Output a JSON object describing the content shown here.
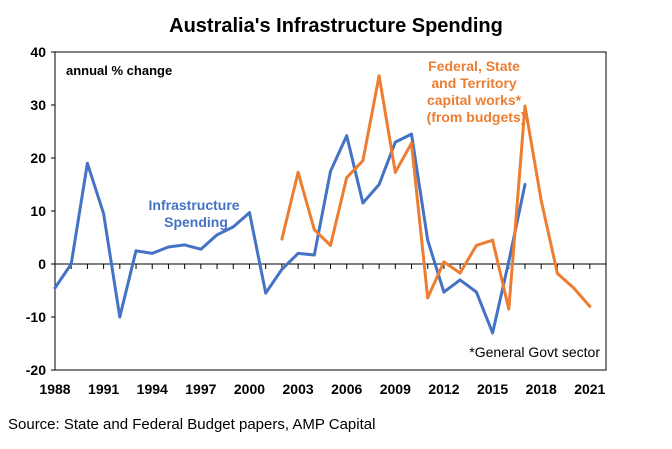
{
  "chart_data": {
    "type": "line",
    "title": "Australia's Infrastructure Spending",
    "ylabel": "annual % change",
    "xlim": [
      1988,
      2022
    ],
    "ylim": [
      -20,
      40
    ],
    "yticks": [
      -20,
      -10,
      0,
      10,
      20,
      30,
      40
    ],
    "xticks": [
      1988,
      1991,
      1994,
      1997,
      2000,
      2003,
      2006,
      2009,
      2012,
      2015,
      2018,
      2021
    ],
    "grid": false,
    "colors": {
      "infrastructure": "#4472c4",
      "capital_works": "#ed7d31",
      "axis": "#000000"
    },
    "series": [
      {
        "name": "Infrastructure Spending",
        "color": "#4472c4",
        "x": [
          1988,
          1989,
          1990,
          1991,
          1992,
          1993,
          1994,
          1995,
          1996,
          1997,
          1998,
          1999,
          2000,
          2001,
          2002,
          2003,
          2004,
          2005,
          2006,
          2007,
          2008,
          2009,
          2010,
          2011,
          2012,
          2013,
          2014,
          2015,
          2016,
          2017
        ],
        "values": [
          -4.5,
          0,
          19,
          9.5,
          -10,
          2.5,
          2,
          3.2,
          3.6,
          2.8,
          5.5,
          7,
          9.7,
          -5.5,
          -1,
          2,
          1.7,
          17.5,
          24.2,
          11.5,
          15,
          23,
          24.5,
          4.5,
          -5.3,
          -3,
          -5.3,
          -13,
          0.5,
          15
        ]
      },
      {
        "name": "Federal, State and Territory capital works* (from budgets)",
        "color": "#ed7d31",
        "x": [
          2002,
          2003,
          2004,
          2005,
          2006,
          2007,
          2008,
          2009,
          2010,
          2011,
          2012,
          2013,
          2014,
          2015,
          2016,
          2017,
          2018,
          2019,
          2020,
          2021
        ],
        "values": [
          4.7,
          17.3,
          6.5,
          3.5,
          16.3,
          19.5,
          35.5,
          17.3,
          22.8,
          -6.4,
          0.4,
          -1.7,
          3.5,
          4.5,
          -8.5,
          29.8,
          12,
          -1.8,
          -4.5,
          -8
        ]
      }
    ],
    "annotations": {
      "blue_label": [
        "Infrastructure",
        "Spending"
      ],
      "orange_label": [
        "Federal, State",
        "and Territory",
        "capital works*",
        "(from budgets)"
      ],
      "footnote": "*General Govt sector"
    },
    "source": "Source: State and Federal Budget papers, AMP Capital"
  }
}
